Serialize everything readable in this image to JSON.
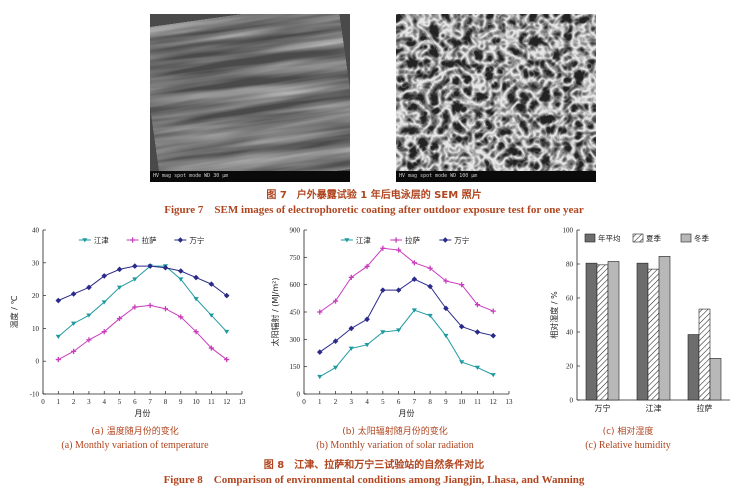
{
  "figure7": {
    "left_bar": "HV   mag   spot  mode  WD        30 µm",
    "right_bar": "HV   mag   spot  mode  WD        100 µm",
    "caption_cn": "图 7　户外暴露试验 1 年后电泳层的 SEM 照片",
    "caption_en": "Figure 7　SEM images of electrophoretic coating after outdoor exposure test for one year"
  },
  "figure8": {
    "caption_cn": "图 8　江津、拉萨和万宁三试验站的自然条件对比",
    "caption_en": "Figure 8　Comparison of environmental conditions among Jiangjin, Lhasa, and Wanning",
    "sub_a_cn": "(a)  温度随月份的变化",
    "sub_a_en": "(a) Monthly variation of temperature",
    "sub_b_cn": "(b)  太阳辐射随月份的变化",
    "sub_b_en": "(b) Monthly variation of solar radiation",
    "sub_c_cn": "(c)  相对湿度",
    "sub_c_en": "(c) Relative humidity"
  },
  "colors": {
    "caption": "#b0451f",
    "teal": "#1f9aa0",
    "magenta": "#c93dbd",
    "navy": "#2a2a8a"
  },
  "chart_data": [
    {
      "type": "line",
      "title": "",
      "xlabel": "月份",
      "ylabel": "温度 / ℃",
      "xlim": [
        0,
        13
      ],
      "ylim": [
        -10,
        40
      ],
      "xticks": [
        0,
        1,
        2,
        3,
        4,
        5,
        6,
        7,
        8,
        9,
        10,
        11,
        12,
        13
      ],
      "yticks": [
        -10,
        0,
        10,
        20,
        30,
        40
      ],
      "x": [
        1,
        2,
        3,
        4,
        5,
        6,
        7,
        8,
        9,
        10,
        11,
        12
      ],
      "series": [
        {
          "name": "江津",
          "color": "#1f9aa0",
          "marker": "tri-down",
          "values": [
            7.5,
            11.5,
            14,
            18,
            22.5,
            25,
            29,
            29,
            25,
            19,
            14,
            9
          ]
        },
        {
          "name": "拉萨",
          "color": "#c93dbd",
          "marker": "plus",
          "values": [
            0.5,
            3,
            6.5,
            9,
            13,
            16.5,
            17,
            16,
            13.5,
            9,
            4,
            0.5
          ]
        },
        {
          "name": "万宁",
          "color": "#2a2a8a",
          "marker": "diamond",
          "values": [
            18.5,
            20.5,
            22.5,
            26,
            28,
            29,
            29,
            28.5,
            27.5,
            25.5,
            23.5,
            20
          ]
        }
      ],
      "legend": "top"
    },
    {
      "type": "line",
      "title": "",
      "xlabel": "月份",
      "ylabel": "太阳辐射 / (MJ/m²)",
      "xlim": [
        0,
        13
      ],
      "ylim": [
        0,
        900
      ],
      "xticks": [
        0,
        1,
        2,
        3,
        4,
        5,
        6,
        7,
        8,
        9,
        10,
        11,
        12,
        13
      ],
      "yticks": [
        0,
        150,
        300,
        450,
        600,
        750,
        900
      ],
      "x": [
        1,
        2,
        3,
        4,
        5,
        6,
        7,
        8,
        9,
        10,
        11,
        12
      ],
      "series": [
        {
          "name": "江津",
          "color": "#1f9aa0",
          "marker": "tri-down",
          "values": [
            95,
            145,
            250,
            270,
            340,
            350,
            460,
            430,
            320,
            175,
            145,
            105
          ]
        },
        {
          "name": "拉萨",
          "color": "#c93dbd",
          "marker": "plus",
          "values": [
            450,
            510,
            640,
            700,
            800,
            790,
            720,
            690,
            620,
            600,
            490,
            455
          ]
        },
        {
          "name": "万宁",
          "color": "#2a2a8a",
          "marker": "diamond",
          "values": [
            230,
            290,
            360,
            410,
            570,
            570,
            630,
            590,
            470,
            370,
            340,
            320
          ]
        }
      ],
      "legend": "top"
    },
    {
      "type": "bar",
      "title": "",
      "xlabel": "",
      "ylabel": "相对湿度 / %",
      "ylim": [
        0,
        100
      ],
      "yticks": [
        0,
        20,
        40,
        60,
        80,
        100
      ],
      "categories": [
        "万宁",
        "江津",
        "拉萨"
      ],
      "series": [
        {
          "name": "年平均",
          "style": "dark",
          "values": [
            80.5,
            80.5,
            38.5
          ]
        },
        {
          "name": "夏季",
          "style": "hatch",
          "values": [
            79.5,
            77,
            53.5
          ]
        },
        {
          "name": "冬季",
          "style": "light",
          "values": [
            81.5,
            84.5,
            24.5
          ]
        }
      ],
      "legend": "top"
    }
  ]
}
